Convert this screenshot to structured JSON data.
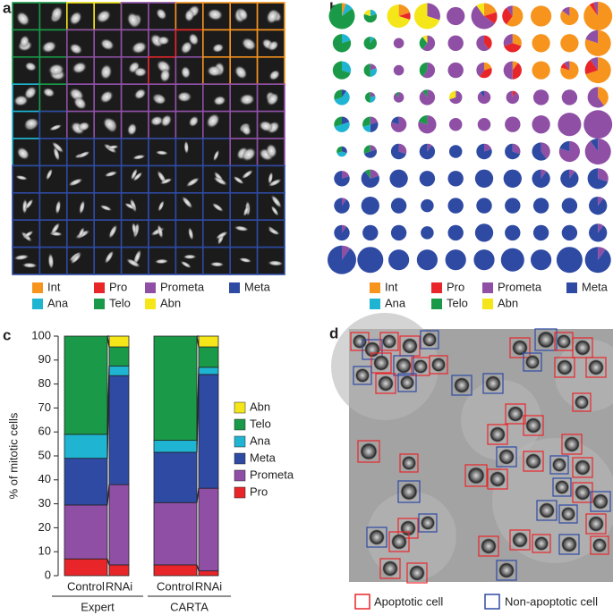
{
  "panel_labels": [
    "a",
    "b",
    "c",
    "d"
  ],
  "panel_a": {
    "legend": [
      "Int",
      "Pro",
      "Prometa",
      "Meta",
      "Ana",
      "Telo",
      "Abn"
    ]
  },
  "panel_d": {
    "legend": [
      "Apoptotic cell",
      "Non-apoptotic cell"
    ]
  },
  "chart_data": [
    {
      "type": "pie-grid",
      "categories": [
        "Int",
        "Pro",
        "Prometa",
        "Meta",
        "Ana",
        "Telo",
        "Abn"
      ],
      "colors": [
        "#f7941d",
        "#e8262a",
        "#8e4fa5",
        "#2e4aa3",
        "#1fb4d2",
        "#1a9a48",
        "#f5e61a"
      ],
      "sizes": [
        [
          10,
          5,
          9,
          10,
          7,
          10,
          8,
          8,
          7,
          11
        ],
        [
          7,
          5,
          4,
          6,
          6,
          6,
          7,
          7,
          7,
          10
        ],
        [
          7,
          5,
          4,
          6,
          6,
          6,
          7,
          7,
          7,
          10
        ],
        [
          6,
          4,
          4,
          6,
          5,
          5,
          5,
          6,
          6,
          8
        ],
        [
          6,
          6,
          6,
          7,
          5,
          5,
          6,
          7,
          9,
          11
        ],
        [
          4,
          5,
          6,
          6,
          5,
          6,
          6,
          7,
          8,
          10
        ],
        [
          6,
          7,
          7,
          6,
          6,
          7,
          7,
          7,
          7,
          8
        ],
        [
          6,
          7,
          6,
          5,
          6,
          6,
          6,
          6,
          6,
          7
        ],
        [
          6,
          6,
          6,
          5,
          6,
          7,
          6,
          6,
          6,
          7
        ],
        [
          11,
          10,
          8,
          8,
          8,
          8,
          9,
          8,
          10,
          10
        ]
      ],
      "shares": [
        [
          [
            5,
            0,
            0,
            0,
            10,
            85,
            0
          ],
          [
            0,
            0,
            0,
            0,
            20,
            60,
            20
          ],
          [
            20,
            10,
            0,
            0,
            0,
            0,
            70
          ],
          [
            0,
            0,
            30,
            0,
            0,
            0,
            70
          ],
          [
            0,
            0,
            100,
            0,
            0,
            0,
            0
          ],
          [
            20,
            15,
            55,
            0,
            0,
            0,
            10
          ],
          [
            60,
            30,
            10,
            0,
            0,
            0,
            0
          ],
          [
            100,
            0,
            0,
            0,
            0,
            0,
            0
          ],
          [
            85,
            0,
            15,
            0,
            0,
            0,
            0
          ],
          [
            90,
            5,
            5,
            0,
            0,
            0,
            0
          ]
        ],
        [
          [
            0,
            0,
            0,
            0,
            20,
            80,
            0
          ],
          [
            0,
            0,
            0,
            0,
            10,
            90,
            0
          ],
          [
            0,
            0,
            100,
            0,
            0,
            0,
            0
          ],
          [
            0,
            0,
            60,
            0,
            0,
            30,
            10
          ],
          [
            0,
            0,
            100,
            0,
            0,
            0,
            0
          ],
          [
            0,
            40,
            60,
            0,
            0,
            0,
            0
          ],
          [
            30,
            40,
            30,
            0,
            0,
            0,
            0
          ],
          [
            100,
            0,
            0,
            0,
            0,
            0,
            0
          ],
          [
            100,
            0,
            0,
            0,
            0,
            0,
            0
          ],
          [
            80,
            0,
            20,
            0,
            0,
            0,
            0
          ]
        ],
        [
          [
            0,
            0,
            0,
            0,
            30,
            70,
            0
          ],
          [
            0,
            0,
            20,
            0,
            30,
            50,
            0
          ],
          [
            0,
            0,
            100,
            0,
            0,
            0,
            0
          ],
          [
            0,
            0,
            60,
            0,
            0,
            40,
            0
          ],
          [
            0,
            0,
            100,
            0,
            0,
            0,
            0
          ],
          [
            20,
            40,
            40,
            0,
            0,
            0,
            0
          ],
          [
            10,
            40,
            50,
            0,
            0,
            0,
            0
          ],
          [
            100,
            0,
            0,
            0,
            0,
            0,
            0
          ],
          [
            80,
            10,
            10,
            0,
            0,
            0,
            0
          ],
          [
            70,
            20,
            10,
            0,
            0,
            0,
            0
          ]
        ],
        [
          [
            0,
            0,
            0,
            10,
            60,
            30,
            0
          ],
          [
            0,
            0,
            20,
            0,
            30,
            50,
            0
          ],
          [
            0,
            0,
            90,
            0,
            0,
            10,
            0
          ],
          [
            0,
            0,
            90,
            0,
            0,
            10,
            0
          ],
          [
            0,
            0,
            70,
            0,
            0,
            0,
            30
          ],
          [
            0,
            0,
            90,
            10,
            0,
            0,
            0
          ],
          [
            0,
            10,
            90,
            0,
            0,
            0,
            0
          ],
          [
            0,
            0,
            100,
            0,
            0,
            0,
            0
          ],
          [
            0,
            0,
            100,
            0,
            0,
            0,
            0
          ],
          [
            40,
            0,
            60,
            0,
            0,
            0,
            0
          ]
        ],
        [
          [
            0,
            0,
            0,
            20,
            50,
            30,
            0
          ],
          [
            0,
            0,
            20,
            30,
            20,
            30,
            0
          ],
          [
            0,
            0,
            80,
            20,
            0,
            0,
            0
          ],
          [
            0,
            0,
            80,
            0,
            0,
            20,
            0
          ],
          [
            0,
            0,
            100,
            0,
            0,
            0,
            0
          ],
          [
            0,
            0,
            100,
            0,
            0,
            0,
            0
          ],
          [
            0,
            0,
            100,
            0,
            0,
            0,
            0
          ],
          [
            0,
            0,
            100,
            0,
            0,
            0,
            0
          ],
          [
            0,
            0,
            100,
            0,
            0,
            0,
            0
          ],
          [
            0,
            0,
            100,
            0,
            0,
            0,
            0
          ]
        ],
        [
          [
            0,
            0,
            0,
            30,
            40,
            30,
            0
          ],
          [
            0,
            0,
            20,
            50,
            0,
            30,
            0
          ],
          [
            0,
            0,
            30,
            70,
            0,
            0,
            0
          ],
          [
            0,
            0,
            10,
            90,
            0,
            0,
            0
          ],
          [
            0,
            0,
            0,
            100,
            0,
            0,
            0
          ],
          [
            0,
            0,
            20,
            80,
            0,
            0,
            0
          ],
          [
            0,
            0,
            30,
            70,
            0,
            0,
            0
          ],
          [
            0,
            0,
            40,
            60,
            0,
            0,
            0
          ],
          [
            0,
            0,
            80,
            20,
            0,
            0,
            0
          ],
          [
            0,
            0,
            90,
            10,
            0,
            0,
            0
          ]
        ],
        [
          [
            0,
            0,
            20,
            80,
            0,
            0,
            0
          ],
          [
            0,
            0,
            20,
            70,
            0,
            10,
            0
          ],
          [
            0,
            0,
            0,
            100,
            0,
            0,
            0
          ],
          [
            0,
            0,
            0,
            100,
            0,
            0,
            0
          ],
          [
            0,
            0,
            0,
            100,
            0,
            0,
            0
          ],
          [
            0,
            0,
            0,
            100,
            0,
            0,
            0
          ],
          [
            0,
            0,
            0,
            100,
            0,
            0,
            0
          ],
          [
            0,
            0,
            10,
            90,
            0,
            0,
            0
          ],
          [
            0,
            0,
            10,
            90,
            0,
            0,
            0
          ],
          [
            0,
            0,
            30,
            70,
            0,
            0,
            0
          ]
        ],
        [
          [
            0,
            0,
            10,
            90,
            0,
            0,
            0
          ],
          [
            0,
            0,
            0,
            100,
            0,
            0,
            0
          ],
          [
            0,
            0,
            0,
            100,
            0,
            0,
            0
          ],
          [
            0,
            0,
            0,
            100,
            0,
            0,
            0
          ],
          [
            0,
            0,
            0,
            100,
            0,
            0,
            0
          ],
          [
            0,
            0,
            0,
            100,
            0,
            0,
            0
          ],
          [
            0,
            0,
            0,
            100,
            0,
            0,
            0
          ],
          [
            0,
            0,
            0,
            100,
            0,
            0,
            0
          ],
          [
            0,
            0,
            0,
            100,
            0,
            0,
            0
          ],
          [
            0,
            0,
            10,
            90,
            0,
            0,
            0
          ]
        ],
        [
          [
            0,
            0,
            10,
            90,
            0,
            0,
            0
          ],
          [
            0,
            0,
            0,
            100,
            0,
            0,
            0
          ],
          [
            0,
            0,
            0,
            100,
            0,
            0,
            0
          ],
          [
            0,
            0,
            0,
            100,
            0,
            0,
            0
          ],
          [
            0,
            0,
            0,
            100,
            0,
            0,
            0
          ],
          [
            0,
            0,
            0,
            100,
            0,
            0,
            0
          ],
          [
            0,
            0,
            0,
            100,
            0,
            0,
            0
          ],
          [
            0,
            0,
            0,
            100,
            0,
            0,
            0
          ],
          [
            0,
            0,
            0,
            100,
            0,
            0,
            0
          ],
          [
            0,
            0,
            10,
            90,
            0,
            0,
            0
          ]
        ],
        [
          [
            0,
            0,
            10,
            90,
            0,
            0,
            0
          ],
          [
            0,
            0,
            0,
            100,
            0,
            0,
            0
          ],
          [
            0,
            0,
            0,
            100,
            0,
            0,
            0
          ],
          [
            0,
            0,
            0,
            100,
            0,
            0,
            0
          ],
          [
            0,
            0,
            0,
            100,
            0,
            0,
            0
          ],
          [
            0,
            0,
            0,
            100,
            0,
            0,
            0
          ],
          [
            0,
            0,
            0,
            100,
            0,
            0,
            0
          ],
          [
            0,
            0,
            0,
            100,
            0,
            0,
            0
          ],
          [
            0,
            0,
            0,
            100,
            0,
            0,
            0
          ],
          [
            0,
            0,
            10,
            90,
            0,
            0,
            0
          ]
        ]
      ]
    },
    {
      "type": "bar",
      "stacked": true,
      "ylabel": "% of mitotic cells",
      "categories": [
        "Control",
        "RNAi",
        "Control",
        "RNAi"
      ],
      "groups": [
        "Expert",
        "CARTA"
      ],
      "ylim": [
        0,
        100
      ],
      "yticks": [
        0,
        10,
        20,
        30,
        40,
        50,
        60,
        70,
        80,
        90,
        100
      ],
      "series": [
        {
          "name": "Pro",
          "color": "#e8262a",
          "values": [
            7,
            4.5,
            4.5,
            2
          ]
        },
        {
          "name": "Prometa",
          "color": "#8e4fa5",
          "values": [
            22.5,
            33.5,
            26,
            34.5
          ]
        },
        {
          "name": "Meta",
          "color": "#2e4aa3",
          "values": [
            19.5,
            45.5,
            21,
            47.5
          ]
        },
        {
          "name": "Ana",
          "color": "#1fb4d2",
          "values": [
            10,
            4,
            5,
            3
          ]
        },
        {
          "name": "Telo",
          "color": "#1a9a48",
          "values": [
            41,
            8,
            43.5,
            8.5
          ]
        },
        {
          "name": "Abn",
          "color": "#f5e61a",
          "values": [
            0,
            4.5,
            0,
            4.5
          ]
        }
      ]
    }
  ]
}
